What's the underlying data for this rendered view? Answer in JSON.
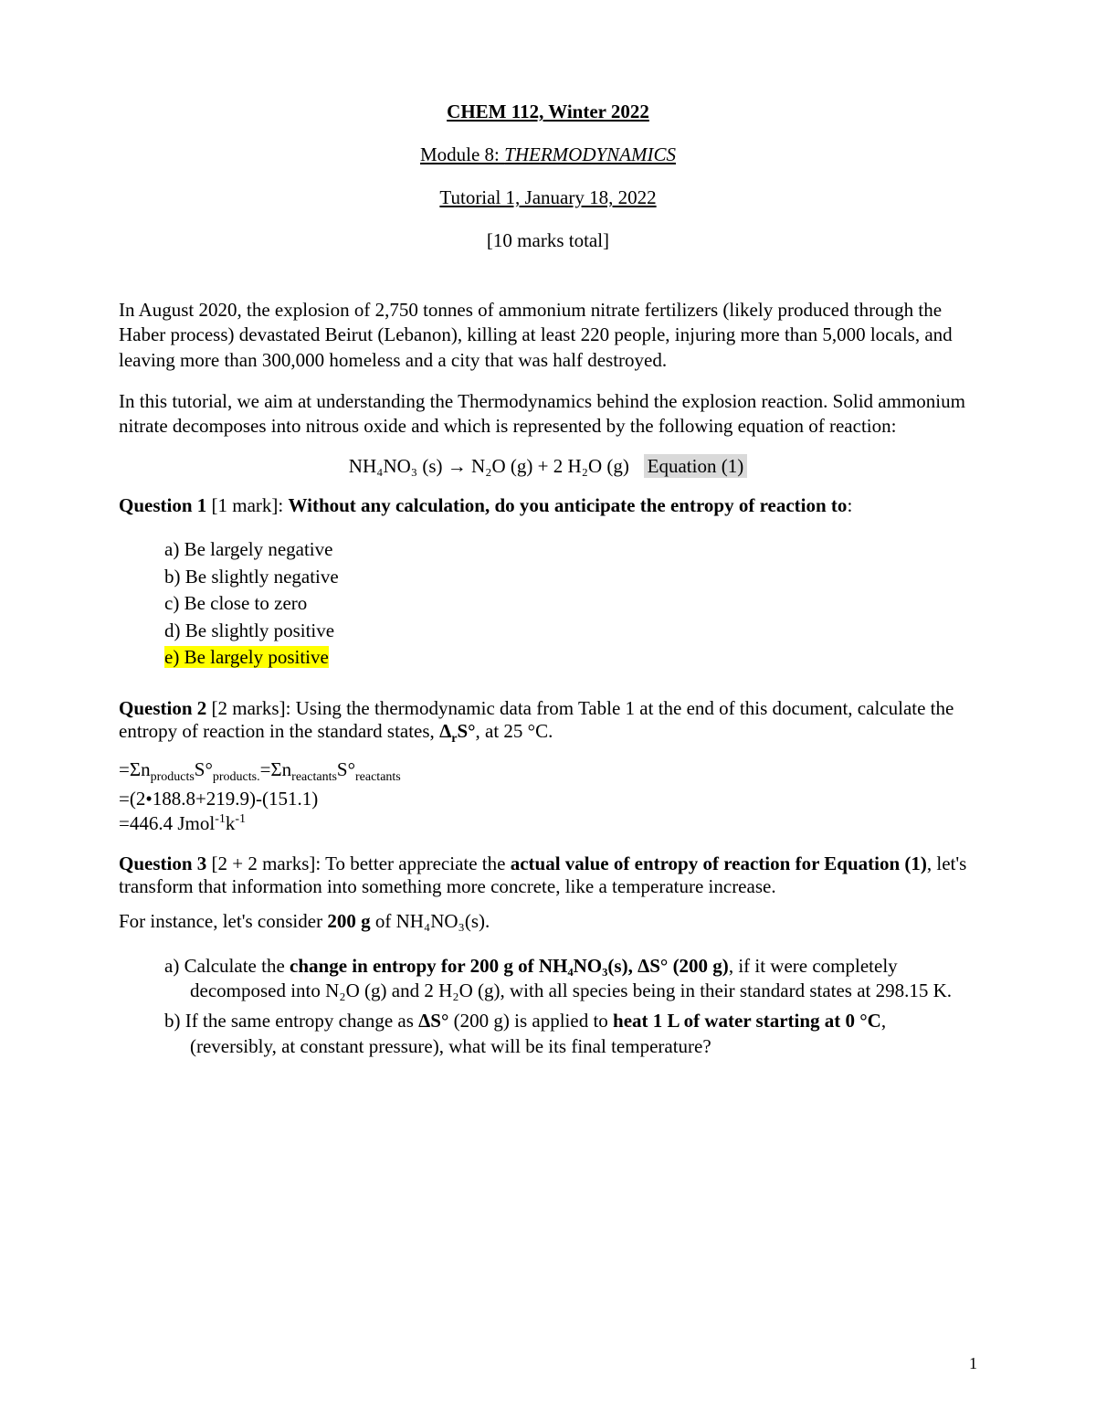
{
  "header": {
    "title": "CHEM 112, Winter 2022",
    "module_prefix": "Module 8: ",
    "module_title": "THERMODYNAMICS",
    "tutorial": "Tutorial 1, January 18, 2022",
    "marks_total": "[10 marks total]"
  },
  "intro": {
    "p1": "In August 2020, the explosion of 2,750 tonnes of ammonium nitrate fertilizers (likely produced through the Haber process) devastated Beirut (Lebanon), killing at least 220 people, injuring more than 5,000 locals, and leaving more than 300,000 homeless and a city that was half destroyed.",
    "p2": "In this tutorial, we aim at understanding the Thermodynamics behind the explosion reaction. Solid ammonium nitrate decomposes into nitrous oxide and which is represented by the following equation of reaction:"
  },
  "equation": {
    "formula": "NH₄NO₃ (s) → N₂O (g) + 2 H₂O (g)",
    "label": "Equation (1)"
  },
  "q1": {
    "heading_bold1": "Question 1",
    "heading_marks": " [1 mark]: ",
    "heading_bold2": "Without any calculation, do you anticipate the entropy of reaction to",
    "heading_colon": ":",
    "options": {
      "a": "a)   Be largely negative",
      "b": "b)   Be slightly negative",
      "c": "c)   Be close to zero",
      "d": "d)   Be slightly positive",
      "e": "e)   Be largely positive"
    }
  },
  "q2": {
    "heading_bold": "Question 2",
    "heading_rest1": " [2 marks]: Using the thermodynamic data from Table 1 at the end of this document, calculate the entropy of reaction in the standard states, ",
    "heading_bold2": "Δ",
    "heading_sub_r": "r",
    "heading_bold3": "S°",
    "heading_rest2": ", at 25 °C.",
    "calc_line1_a": "=Σn",
    "calc_line1_sub1": "products",
    "calc_line1_b": "S°",
    "calc_line1_sub2": "products.",
    "calc_line1_c": "=Σn",
    "calc_line1_sub3": "reactants",
    "calc_line1_d": "S°",
    "calc_line1_sub4": "reactants",
    "calc_line2": "=(2•188.8+219.9)-(151.1)",
    "calc_line3_a": "=446.4 Jmol",
    "calc_line3_sup1": "-1",
    "calc_line3_b": "k",
    "calc_line3_sup2": "-1"
  },
  "q3": {
    "heading_bold1": "Question 3",
    "heading_rest1": " [2 + 2 marks]: To better appreciate the ",
    "heading_bold2": "actual value of entropy of reaction for Equation (1)",
    "heading_rest2": ", let's transform that information into something more concrete, like a temperature increase.",
    "p_prefix": "For instance, let's consider ",
    "p_bold": "200 g",
    "p_suffix": " of NH₄NO₃(s).",
    "a_prefix": "a)   Calculate the ",
    "a_bold": "change in entropy for 200 g of NH₄NO₃(s), ΔS° (200 g)",
    "a_suffix": ", if it were completely decomposed into N₂O (g) and 2 H₂O (g), with all species being in their standard states at 298.15 K.",
    "b_prefix": "b)   If the same entropy change as ",
    "b_bold1": "ΔS°",
    "b_mid": " (200 g) is applied to ",
    "b_bold2": "heat 1 L of water starting at 0 °C",
    "b_suffix": ", (reversibly, at constant pressure), what will be its final temperature?"
  },
  "page_number": "1",
  "colors": {
    "highlight": "#ffff00",
    "equation_label_bg": "#d9d9d9",
    "text": "#000000",
    "background": "#ffffff"
  }
}
